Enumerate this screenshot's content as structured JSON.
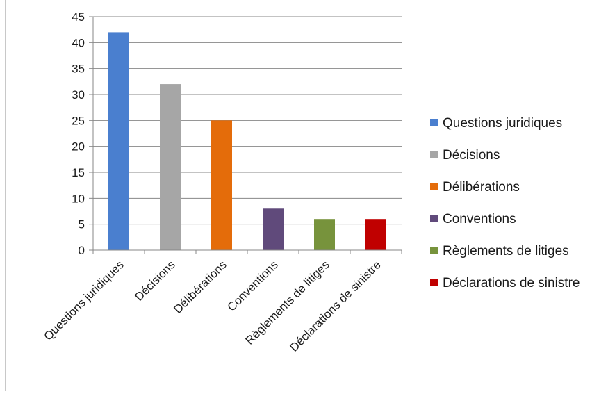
{
  "chart_data": {
    "type": "bar",
    "title": "",
    "xlabel": "",
    "ylabel": "",
    "categories": [
      "Questions juridiques",
      "Décisions",
      "Délibérations",
      "Conventions",
      "Règlements de litiges",
      "Déclarations de sinistre"
    ],
    "values": [
      42,
      32,
      25,
      8,
      6,
      6
    ],
    "colors": [
      "#4a7fcf",
      "#a6a6a6",
      "#e46c0a",
      "#604a7b",
      "#77933c",
      "#c00000"
    ],
    "ylim": [
      0,
      45
    ],
    "yticks": [
      0,
      5,
      10,
      15,
      20,
      25,
      30,
      35,
      40,
      45
    ],
    "grid": true,
    "legend_position": "right",
    "legend": [
      "Questions juridiques",
      "Décisions",
      "Délibérations",
      "Conventions",
      "Règlements de litiges",
      "Déclarations de sinistre"
    ]
  }
}
